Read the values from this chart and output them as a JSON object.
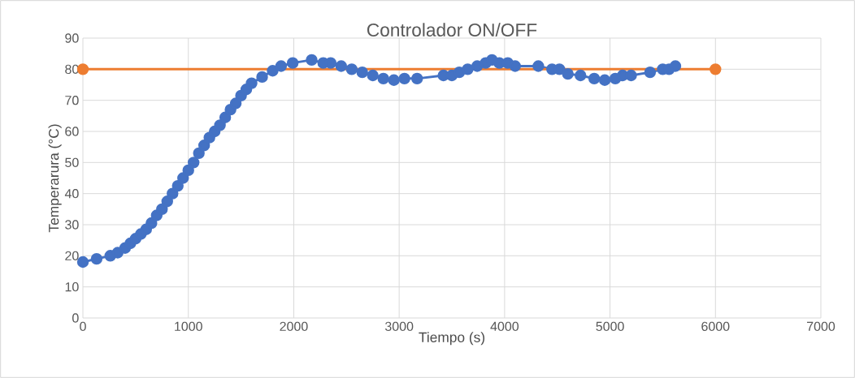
{
  "chart_data": {
    "type": "line",
    "title": "Controlador ON/OFF",
    "xlabel": "Tiempo (s)",
    "ylabel": "Temperarura (°C)",
    "xlim": [
      0,
      7000
    ],
    "xticks": [
      0,
      1000,
      2000,
      3000,
      4000,
      5000,
      6000,
      7000
    ],
    "ylim": [
      0,
      90
    ],
    "yticks": [
      0,
      10,
      20,
      30,
      40,
      50,
      60,
      70,
      80,
      90
    ],
    "grid": true,
    "marker": "circle",
    "line_style": "solid",
    "series": [
      {
        "color": "#4472c4",
        "x": [
          0,
          130,
          260,
          330,
          400,
          450,
          500,
          550,
          600,
          650,
          700,
          750,
          800,
          850,
          900,
          950,
          1000,
          1050,
          1100,
          1150,
          1200,
          1250,
          1300,
          1350,
          1400,
          1450,
          1500,
          1550,
          1600,
          1700,
          1800,
          1880,
          1990,
          2170,
          2280,
          2350,
          2450,
          2550,
          2650,
          2750,
          2850,
          2950,
          3050,
          3170,
          3420,
          3500,
          3570,
          3650,
          3740,
          3820,
          3880,
          3950,
          4030,
          4100,
          4320,
          4450,
          4520,
          4600,
          4720,
          4850,
          4950,
          5050,
          5120,
          5200,
          5380,
          5500,
          5560,
          5620
        ],
        "values": [
          18,
          19,
          20,
          21,
          22.5,
          24,
          25.5,
          27,
          28.5,
          30.5,
          33,
          35,
          37.5,
          40,
          42.5,
          45,
          47.5,
          50,
          53,
          55.5,
          58,
          60,
          62,
          64.5,
          67,
          69,
          71.5,
          73.5,
          75.5,
          77.5,
          79.5,
          81,
          82,
          83,
          82,
          82,
          81,
          80,
          79,
          78,
          77,
          76.5,
          77,
          77,
          78,
          78,
          79,
          80,
          81,
          82,
          83,
          82,
          82,
          81,
          81,
          80,
          80,
          78.5,
          78,
          77,
          76.5,
          77,
          78,
          78,
          79,
          80,
          80,
          81
        ]
      },
      {
        "color": "#ed7d31",
        "x": [
          0,
          6000
        ],
        "values": [
          80,
          80
        ]
      }
    ]
  }
}
